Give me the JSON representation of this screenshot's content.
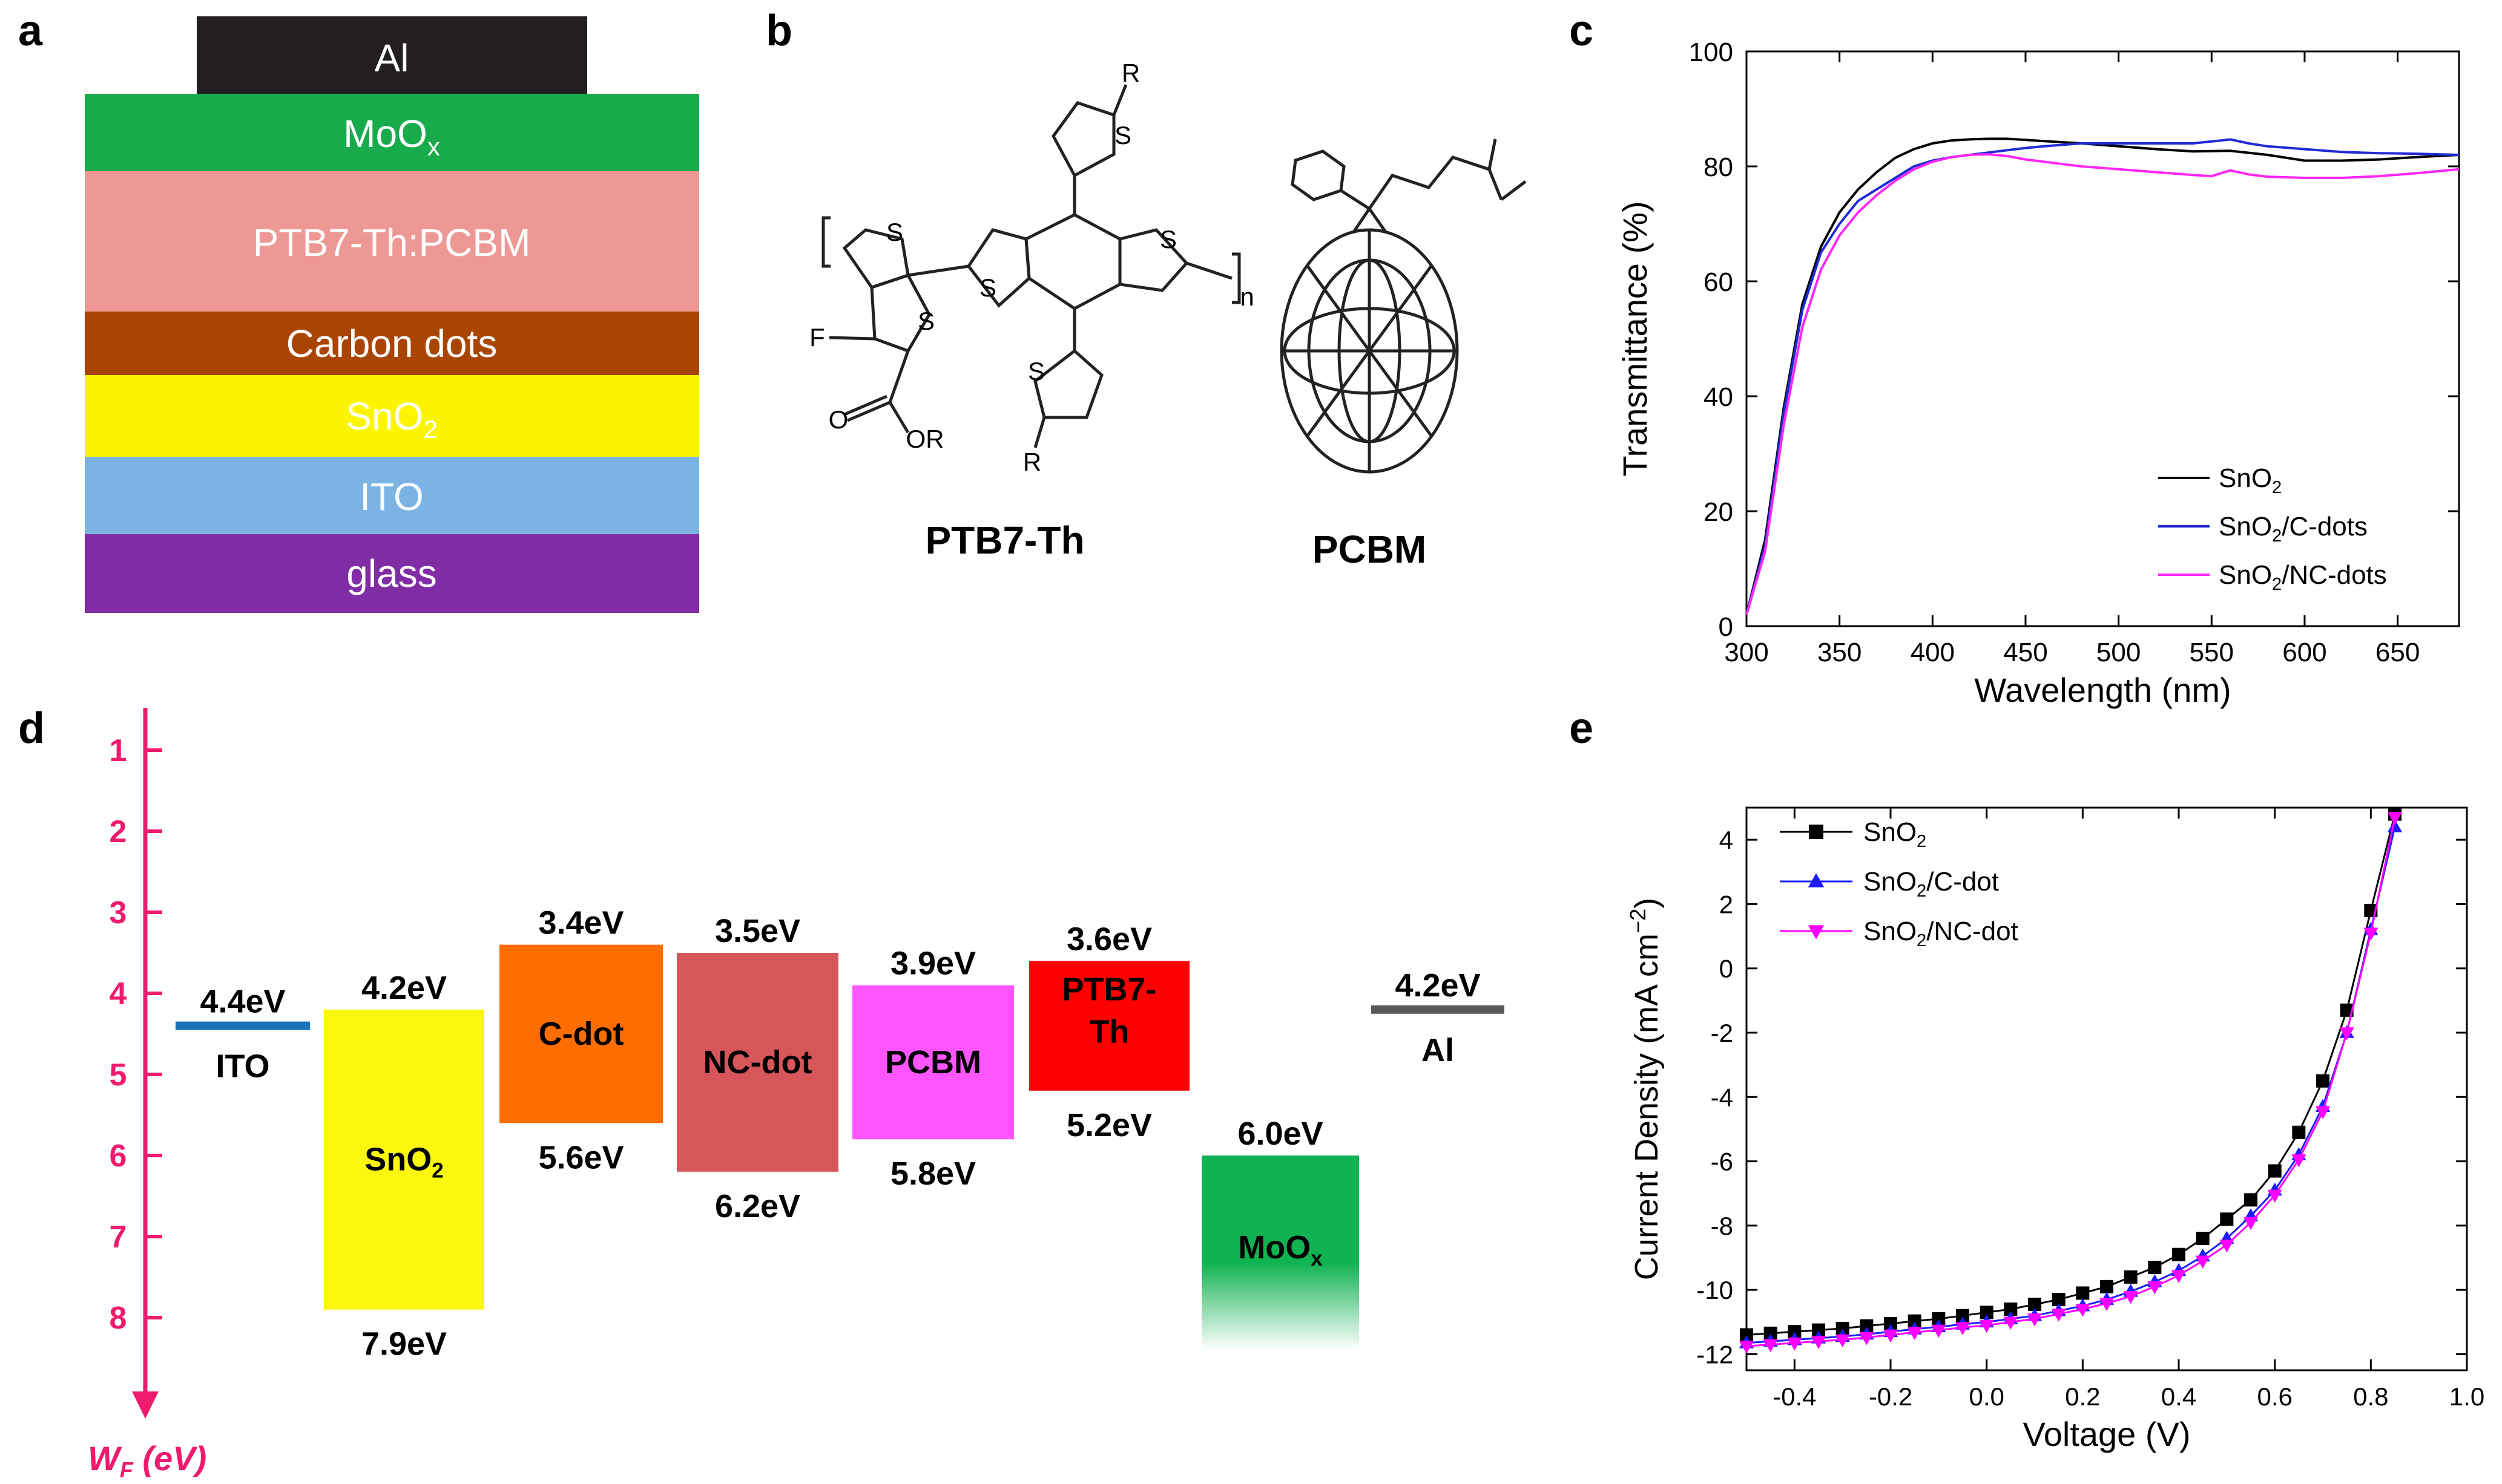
{
  "panels": {
    "a": "a",
    "b": "b",
    "c": "c",
    "d": "d",
    "e": "e"
  },
  "device_stack": {
    "layers": [
      {
        "label": "Al",
        "color": "#231f20",
        "text_color": "#ffffff"
      },
      {
        "label": "MoOx",
        "main": "MoO",
        "sub": "x",
        "color": "#18ab4b",
        "text_color": "#ffffff"
      },
      {
        "label": "PTB7-Th:PCBM",
        "color": "#ee9896",
        "text_color": "#ffffff"
      },
      {
        "label": "Carbon dots",
        "color": "#a94501",
        "text_color": "#ffffff"
      },
      {
        "label": "SnO2",
        "main": "SnO",
        "sub": "2",
        "color": "#fcf500",
        "text_color": "#ffffff"
      },
      {
        "label": "ITO",
        "color": "#7bb4e4",
        "text_color": "#ffffff"
      },
      {
        "label": "glass",
        "color": "#7f2ca5",
        "text_color": "#ffffff"
      }
    ]
  },
  "structures": {
    "ptb7_label": "PTB7-Th",
    "pcbm_label": "PCBM",
    "atoms": {
      "S": "S",
      "F": "F",
      "O": "O",
      "OR": "OR",
      "R": "R",
      "n": "n"
    }
  },
  "chart_data": [
    {
      "panel": "c",
      "type": "line",
      "xlabel": "Wavelength (nm)",
      "ylabel": "Transmittance (%)",
      "xlim": [
        300,
        683
      ],
      "ylim": [
        0,
        100
      ],
      "xticks": [
        300,
        350,
        400,
        450,
        500,
        550,
        600,
        650
      ],
      "yticks": [
        0,
        20,
        40,
        60,
        80,
        100
      ],
      "legend_position": "bottom-right",
      "series": [
        {
          "name": "SnO2",
          "name_main": "SnO",
          "name_sub": "2",
          "name_tail": "",
          "color": "#000000",
          "x": [
            300,
            310,
            320,
            330,
            340,
            350,
            360,
            370,
            380,
            390,
            400,
            410,
            420,
            430,
            440,
            450,
            460,
            480,
            500,
            520,
            540,
            560,
            580,
            600,
            620,
            640,
            660,
            683
          ],
          "y": [
            2,
            15,
            38,
            56,
            66,
            72,
            76,
            79,
            81.5,
            83,
            84,
            84.5,
            84.7,
            84.8,
            84.8,
            84.6,
            84.4,
            84,
            83.5,
            83,
            82.6,
            82.7,
            82,
            81,
            81,
            81.2,
            81.6,
            82
          ]
        },
        {
          "name": "SnO2/C-dots",
          "name_main": "SnO",
          "name_sub": "2",
          "name_tail": "/C-dots",
          "color": "#1f2bd6",
          "x": [
            300,
            310,
            320,
            330,
            340,
            350,
            360,
            370,
            380,
            390,
            400,
            410,
            420,
            430,
            440,
            450,
            460,
            480,
            500,
            520,
            540,
            555,
            560,
            570,
            580,
            600,
            620,
            640,
            660,
            683
          ],
          "y": [
            2,
            14,
            37,
            55,
            65,
            70,
            74,
            76,
            78,
            80,
            81,
            81.6,
            82,
            82.4,
            82.8,
            83.2,
            83.5,
            84,
            84,
            84,
            84,
            84.5,
            84.7,
            84,
            83.5,
            83,
            82.5,
            82.3,
            82.2,
            82
          ]
        },
        {
          "name": "SnO2/NC-dots",
          "name_main": "SnO",
          "name_sub": "2",
          "name_tail": "/NC-dots",
          "color": "#ff28f5",
          "x": [
            300,
            310,
            320,
            330,
            340,
            350,
            360,
            370,
            380,
            390,
            400,
            410,
            420,
            430,
            440,
            450,
            460,
            480,
            500,
            520,
            540,
            550,
            560,
            570,
            580,
            600,
            620,
            640,
            660,
            683
          ],
          "y": [
            2,
            13,
            35,
            52,
            62,
            68,
            72,
            75,
            77.5,
            79.5,
            80.8,
            81.6,
            82,
            82.1,
            81.8,
            81.2,
            80.8,
            80,
            79.5,
            79,
            78.5,
            78.3,
            79.3,
            78.6,
            78.2,
            78,
            78,
            78.3,
            78.8,
            79.5
          ]
        }
      ]
    },
    {
      "panel": "d",
      "type": "energy-level-diagram",
      "axis_label_main": "W",
      "axis_label_sub": "F",
      "axis_label_tail": " (eV)",
      "ticks": [
        1,
        2,
        3,
        4,
        5,
        6,
        7,
        8
      ],
      "axis_color": "#ee1b6e",
      "levels": [
        {
          "name": "ITO",
          "kind": "line",
          "value": 4.4,
          "value_label": "4.4eV",
          "color": "#1a72b8"
        },
        {
          "name": "SnO2",
          "name_main": "SnO",
          "name_sub": "2",
          "kind": "box",
          "top": 4.2,
          "bottom": 7.9,
          "top_label": "4.2eV",
          "bottom_label": "7.9eV",
          "color": "#fbf70e"
        },
        {
          "name": "C-dot",
          "kind": "box",
          "top": 3.4,
          "bottom": 5.6,
          "top_label": "3.4eV",
          "bottom_label": "5.6eV",
          "color": "#ff6c00"
        },
        {
          "name": "NC-dot",
          "kind": "box",
          "top": 3.5,
          "bottom": 6.2,
          "top_label": "3.5eV",
          "bottom_label": "6.2eV",
          "color": "#d75659"
        },
        {
          "name": "PCBM",
          "kind": "box",
          "top": 3.9,
          "bottom": 5.8,
          "top_label": "3.9eV",
          "bottom_label": "5.8eV",
          "color": "#ff55ff"
        },
        {
          "name": "PTB7-Th",
          "line1": "PTB7-",
          "line2": "Th",
          "kind": "box",
          "top": 3.6,
          "bottom": 5.2,
          "top_label": "3.6eV",
          "bottom_label": "5.2eV",
          "color": "#ff0000"
        },
        {
          "name": "MoOx",
          "name_main": "MoO",
          "name_sub": "x",
          "kind": "gradient-box",
          "top": 6.0,
          "bottom": 8.4,
          "top_label": "6.0eV",
          "color": "#10b251"
        },
        {
          "name": "Al",
          "kind": "line",
          "value": 4.2,
          "value_label": "4.2eV",
          "color": "#595959"
        }
      ]
    },
    {
      "panel": "e",
      "type": "line-scatter",
      "xlabel": "Voltage (V)",
      "ylabel_main": "Current Density (mA cm",
      "ylabel_sup": "−2",
      "ylabel_tail": ")",
      "xlim": [
        -0.5,
        1.0
      ],
      "ylim": [
        -12.5,
        5
      ],
      "xticks": [
        -0.4,
        -0.2,
        0.0,
        0.2,
        0.4,
        0.6,
        0.8,
        1.0
      ],
      "xticklabels": [
        "-0.4",
        "-0.2",
        "0.0",
        "0.2",
        "0.4",
        "0.6",
        "0.8",
        "1.0"
      ],
      "yticks": [
        -12,
        -10,
        -8,
        -6,
        -4,
        -2,
        0,
        2,
        4
      ],
      "yticklabels": [
        "-12",
        "-10",
        "-8",
        "-6",
        "-4",
        "-2",
        "0",
        "2",
        "4"
      ],
      "legend_position": "top-left",
      "series": [
        {
          "name": "SnO2",
          "name_main": "SnO",
          "name_sub": "2",
          "name_tail": "",
          "marker": "square",
          "color": "#000000",
          "x": [
            -0.5,
            -0.45,
            -0.4,
            -0.35,
            -0.3,
            -0.25,
            -0.2,
            -0.15,
            -0.1,
            -0.05,
            0.0,
            0.05,
            0.1,
            0.15,
            0.2,
            0.25,
            0.3,
            0.35,
            0.4,
            0.45,
            0.5,
            0.55,
            0.6,
            0.65,
            0.7,
            0.75,
            0.8,
            0.85
          ],
          "y": [
            -11.4,
            -11.35,
            -11.3,
            -11.25,
            -11.2,
            -11.12,
            -11.05,
            -10.97,
            -10.9,
            -10.8,
            -10.7,
            -10.6,
            -10.45,
            -10.3,
            -10.1,
            -9.9,
            -9.6,
            -9.3,
            -8.9,
            -8.4,
            -7.8,
            -7.2,
            -6.3,
            -5.1,
            -3.5,
            -1.3,
            1.8,
            4.8
          ]
        },
        {
          "name": "SnO2/C-dot",
          "name_main": "SnO",
          "name_sub": "2",
          "name_tail": "/C-dot",
          "marker": "triangle-up",
          "color": "#1c1cff",
          "x": [
            -0.5,
            -0.45,
            -0.4,
            -0.35,
            -0.3,
            -0.25,
            -0.2,
            -0.15,
            -0.1,
            -0.05,
            0.0,
            0.05,
            0.1,
            0.15,
            0.2,
            0.25,
            0.3,
            0.35,
            0.4,
            0.45,
            0.5,
            0.55,
            0.6,
            0.65,
            0.7,
            0.75,
            0.8,
            0.85
          ],
          "y": [
            -11.65,
            -11.6,
            -11.55,
            -11.5,
            -11.45,
            -11.38,
            -11.3,
            -11.22,
            -11.15,
            -11.07,
            -11.0,
            -10.9,
            -10.8,
            -10.65,
            -10.5,
            -10.3,
            -10.05,
            -9.75,
            -9.4,
            -8.95,
            -8.4,
            -7.7,
            -6.9,
            -5.8,
            -4.3,
            -2.0,
            1.2,
            4.4
          ]
        },
        {
          "name": "SnO2/NC-dot",
          "name_main": "SnO",
          "name_sub": "2",
          "name_tail": "/NC-dot",
          "marker": "triangle-down",
          "color": "#ff00ff",
          "x": [
            -0.5,
            -0.45,
            -0.4,
            -0.35,
            -0.3,
            -0.25,
            -0.2,
            -0.15,
            -0.1,
            -0.05,
            0.0,
            0.05,
            0.1,
            0.15,
            0.2,
            0.25,
            0.3,
            0.35,
            0.4,
            0.45,
            0.5,
            0.55,
            0.6,
            0.65,
            0.7,
            0.75,
            0.8,
            0.85
          ],
          "y": [
            -11.75,
            -11.7,
            -11.65,
            -11.6,
            -11.55,
            -11.48,
            -11.4,
            -11.32,
            -11.25,
            -11.17,
            -11.1,
            -11.0,
            -10.9,
            -10.75,
            -10.6,
            -10.42,
            -10.2,
            -9.9,
            -9.55,
            -9.1,
            -8.6,
            -7.9,
            -7.05,
            -5.95,
            -4.45,
            -2.0,
            1.1,
            4.7
          ]
        }
      ]
    }
  ]
}
